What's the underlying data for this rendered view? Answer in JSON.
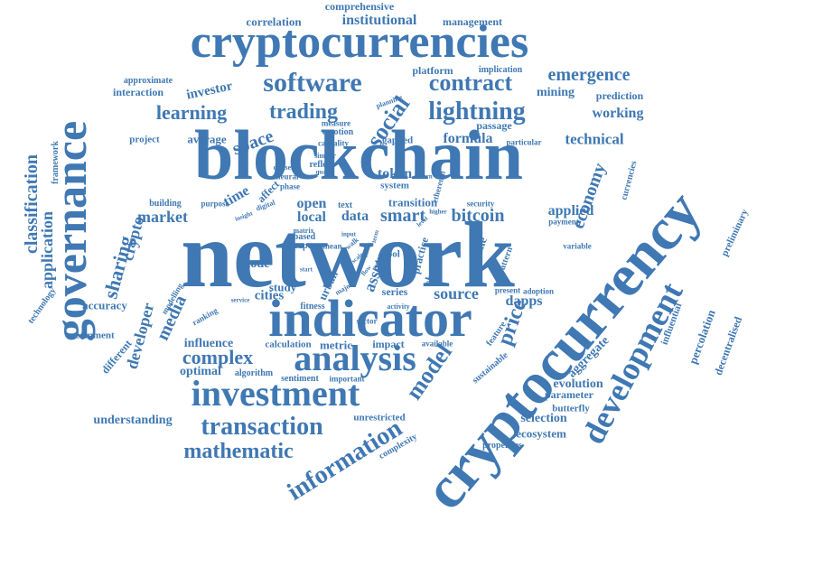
{
  "accent_color": "#3f78b3",
  "words": [
    "cryptocurrencies",
    "blockchain",
    "network",
    "indicator",
    "cryptocurrency",
    "governance",
    "development",
    "investment",
    "analysis",
    "transaction",
    "mathematic",
    "information",
    "model",
    "price",
    "software",
    "contract",
    "lightning",
    "trading",
    "learning",
    "social",
    "emergence",
    "comprehensive",
    "correlation",
    "institutional",
    "management",
    "platform",
    "implication",
    "mining",
    "prediction",
    "working",
    "passage",
    "technical",
    "formula",
    "space",
    "investor",
    "interaction",
    "approximate",
    "project",
    "average",
    "emotion",
    "causality",
    "measure",
    "gapped",
    "classification",
    "framework",
    "application",
    "technology",
    "sharing",
    "crypto",
    "accuracy",
    "comment",
    "developer",
    "different",
    "understanding",
    "media",
    "complex",
    "optimal",
    "influence",
    "ranking",
    "modelling",
    "economy",
    "applied",
    "currencies",
    "preliminary",
    "influential",
    "percolation",
    "decentralised",
    "aggregate",
    "evolution",
    "parameter",
    "butterfly",
    "selection",
    "ecosystem",
    "properties",
    "sustainable",
    "complexity",
    "unrestricted",
    "sentiment",
    "important",
    "algorithm",
    "calculation",
    "metric",
    "impact",
    "available",
    "sector",
    "series",
    "source",
    "dapps",
    "adoption",
    "feature",
    "channel",
    "volume",
    "pattern",
    "practice",
    "bitcoin",
    "smart",
    "data",
    "local",
    "open",
    "text",
    "transition",
    "security",
    "ethereum",
    "token",
    "system",
    "market",
    "time",
    "affect",
    "building",
    "purpose",
    "cities",
    "node",
    "study",
    "urban",
    "asset",
    "fitness",
    "based",
    "paper",
    "mean",
    "reflect",
    "similar",
    "quality",
    "classes",
    "neural",
    "phase",
    "particular",
    "payment",
    "variable",
    "tool",
    "user",
    "activity",
    "present",
    "digital",
    "insight",
    "return",
    "walk",
    "input",
    "major",
    "service",
    "planning",
    "matrix",
    "start",
    "higher",
    "terms",
    "term",
    "result",
    "scale",
    "level",
    "flow"
  ]
}
